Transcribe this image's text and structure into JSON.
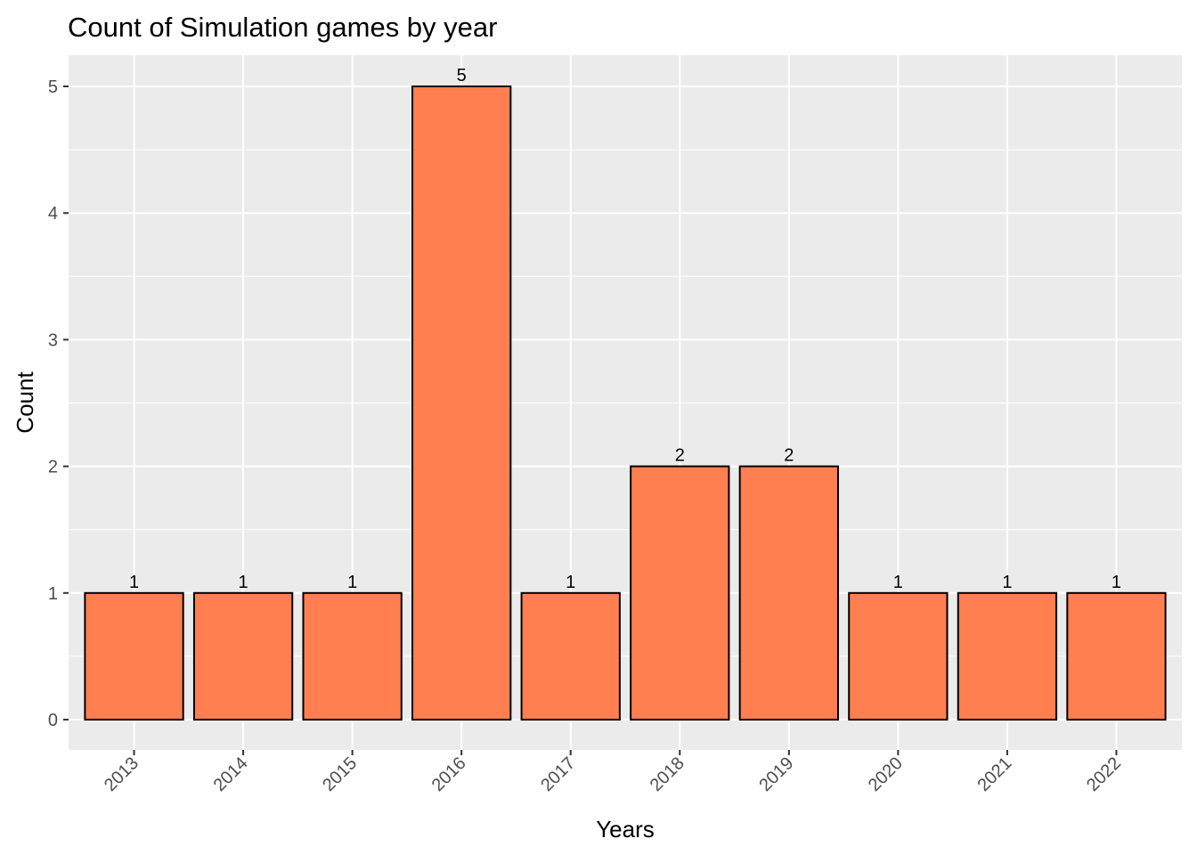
{
  "chart_data": {
    "type": "bar",
    "title": "Count of Simulation games by year",
    "xlabel": "Years",
    "ylabel": "Count",
    "categories": [
      "2013",
      "2014",
      "2015",
      "2016",
      "2017",
      "2018",
      "2019",
      "2020",
      "2021",
      "2022"
    ],
    "values": [
      1,
      1,
      1,
      5,
      1,
      2,
      2,
      1,
      1,
      1
    ],
    "data_labels": [
      "1",
      "1",
      "1",
      "5",
      "1",
      "2",
      "2",
      "1",
      "1",
      "1"
    ],
    "yticks": [
      0,
      1,
      2,
      3,
      4,
      5
    ],
    "ylim": [
      0,
      5.25
    ],
    "grid": true,
    "legend": "none",
    "colors": {
      "bar_fill": "#FF7F50",
      "bar_stroke": "#000000",
      "panel_bg": "#EBEBEB",
      "grid": "#FFFFFF"
    }
  }
}
